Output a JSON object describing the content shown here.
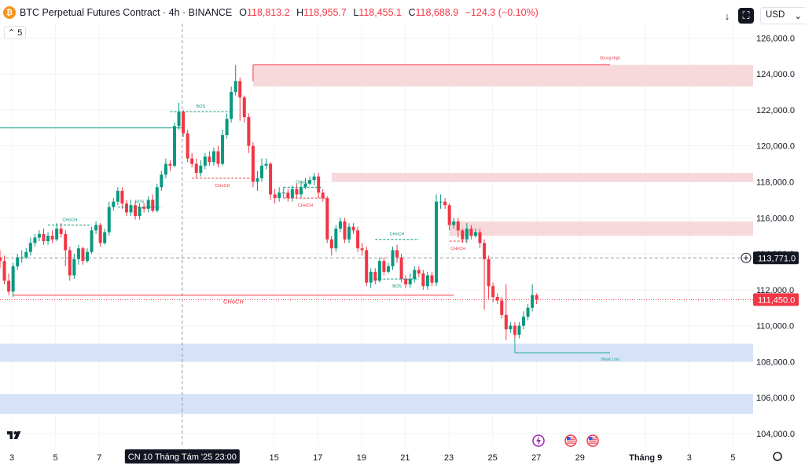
{
  "header": {
    "coin_symbol": "₿",
    "title": "BTC Perpetual Futures Contract · 4h · BINANCE",
    "open_label": "O",
    "open": "118,813.2",
    "high_label": "H",
    "high": "118,955.7",
    "low_label": "L",
    "low": "118,455.1",
    "close_label": "C",
    "close": "118,688.9",
    "change": "−124.3 (−0.10%)",
    "indicator_count": "5",
    "currency": "USD"
  },
  "chart_data": {
    "type": "candlestick",
    "ylim": [
      103300,
      126800
    ],
    "y_ticks": [
      104000,
      106000,
      108000,
      110000,
      112000,
      114000,
      116000,
      118000,
      120000,
      122000,
      124000,
      126000
    ],
    "y_tick_labels": [
      "104,000.0",
      "106,000.0",
      "108,000.0",
      "110,000.0",
      "112,000.0",
      "114,000.0",
      "116,000.0",
      "118,000.0",
      "120,000.0",
      "122,000.0",
      "124,000.0",
      "126,000.0"
    ],
    "x_ticks": [
      {
        "label": "3",
        "day": 3
      },
      {
        "label": "5",
        "day": 5
      },
      {
        "label": "7",
        "day": 7
      },
      {
        "label": "15",
        "day": 15
      },
      {
        "label": "17",
        "day": 17
      },
      {
        "label": "19",
        "day": 19
      },
      {
        "label": "21",
        "day": 21
      },
      {
        "label": "23",
        "day": 23
      },
      {
        "label": "25",
        "day": 25
      },
      {
        "label": "27",
        "day": 27
      },
      {
        "label": "29",
        "day": 29
      },
      {
        "label": "Tháng 9",
        "day": 32
      },
      {
        "label": "3",
        "day": 34
      },
      {
        "label": "5",
        "day": 36
      }
    ],
    "crosshair_label": "CN 10 Tháng Tám '25   23:00",
    "crosshair_day": 10.8,
    "current_price": 111450,
    "current_price_label": "111,450.0",
    "cursor_price": 113771,
    "cursor_price_label": "113,771.0",
    "candles": [
      [
        113800,
        113600,
        114200,
        113200
      ],
      [
        113600,
        112500,
        113900,
        112300
      ],
      [
        112500,
        111900,
        112900,
        111700
      ],
      [
        111900,
        113300,
        113500,
        111600
      ],
      [
        113300,
        113800,
        114000,
        113100
      ],
      [
        113800,
        113800,
        114200,
        113500
      ],
      [
        113800,
        114100,
        114300,
        113700
      ],
      [
        114100,
        114600,
        114900,
        113900
      ],
      [
        114600,
        114900,
        115100,
        114400
      ],
      [
        114900,
        115100,
        115300,
        114700
      ],
      [
        115100,
        114700,
        115400,
        114500
      ],
      [
        114700,
        115000,
        115200,
        114500
      ],
      [
        115000,
        114800,
        115300,
        114600
      ],
      [
        114800,
        115400,
        115700,
        114700
      ],
      [
        115400,
        115100,
        115700,
        114900
      ],
      [
        115100,
        114200,
        115300,
        113300
      ],
      [
        114200,
        112800,
        114400,
        112500
      ],
      [
        112800,
        113700,
        114000,
        112600
      ],
      [
        113700,
        114300,
        114500,
        113400
      ],
      [
        114300,
        113600,
        114400,
        113400
      ],
      [
        113600,
        114100,
        114300,
        113500
      ],
      [
        114100,
        115300,
        115500,
        114000
      ],
      [
        115300,
        115600,
        115800,
        115100
      ],
      [
        115600,
        114600,
        115700,
        114400
      ],
      [
        114600,
        115200,
        115400,
        114500
      ],
      [
        115200,
        116600,
        116900,
        115000
      ],
      [
        116600,
        116900,
        117100,
        116400
      ],
      [
        116900,
        117500,
        117700,
        116700
      ],
      [
        117500,
        116800,
        117700,
        116500
      ],
      [
        116800,
        116300,
        117000,
        116100
      ],
      [
        116300,
        116700,
        117000,
        116100
      ],
      [
        116700,
        116100,
        116900,
        115900
      ],
      [
        116100,
        116600,
        116800,
        115900
      ],
      [
        116600,
        116500,
        116800,
        116300
      ],
      [
        116500,
        117000,
        117200,
        116300
      ],
      [
        117000,
        116400,
        117300,
        116300
      ],
      [
        116400,
        117700,
        117900,
        116300
      ],
      [
        117700,
        118400,
        118600,
        117500
      ],
      [
        118400,
        119000,
        119300,
        118200
      ],
      [
        119000,
        118900,
        119200,
        118600
      ],
      [
        118900,
        121100,
        121300,
        118800
      ],
      [
        121100,
        121900,
        122400,
        120900
      ],
      [
        121900,
        120700,
        122000,
        120500
      ],
      [
        120700,
        119300,
        120900,
        119100
      ],
      [
        119300,
        119000,
        119600,
        118800
      ],
      [
        119000,
        118500,
        119300,
        118200
      ],
      [
        118500,
        118900,
        119200,
        118300
      ],
      [
        118900,
        119400,
        119600,
        118700
      ],
      [
        119400,
        119100,
        119700,
        118900
      ],
      [
        119100,
        119700,
        119900,
        118900
      ],
      [
        119700,
        119000,
        120000,
        118800
      ],
      [
        119000,
        120600,
        120900,
        118900
      ],
      [
        120600,
        121500,
        121800,
        120400
      ],
      [
        121500,
        123000,
        123300,
        121300
      ],
      [
        123000,
        123600,
        124500,
        122800
      ],
      [
        123600,
        122700,
        123800,
        121400
      ],
      [
        122700,
        121600,
        122800,
        121300
      ],
      [
        121600,
        120000,
        121800,
        119600
      ],
      [
        120000,
        118000,
        120200,
        117700
      ],
      [
        118000,
        118200,
        118600,
        117500
      ],
      [
        118200,
        118900,
        119300,
        118000
      ],
      [
        118900,
        119000,
        119300,
        118700
      ],
      [
        119000,
        117300,
        119100,
        117000
      ],
      [
        117300,
        117100,
        117600,
        116800
      ],
      [
        117100,
        117400,
        117700,
        116900
      ],
      [
        117400,
        117400,
        117700,
        117100
      ],
      [
        117400,
        117100,
        117600,
        116900
      ],
      [
        117100,
        117600,
        117800,
        116900
      ],
      [
        117600,
        117300,
        117900,
        117100
      ],
      [
        117300,
        117700,
        118000,
        117100
      ],
      [
        117700,
        117900,
        118200,
        117600
      ],
      [
        117900,
        118100,
        118300,
        117800
      ],
      [
        118100,
        118300,
        118500,
        117800
      ],
      [
        118300,
        117400,
        118500,
        117100
      ],
      [
        117400,
        117100,
        117600,
        116900
      ],
      [
        117100,
        114800,
        117200,
        114600
      ],
      [
        114800,
        114300,
        115000,
        113900
      ],
      [
        114300,
        115400,
        115600,
        114100
      ],
      [
        115400,
        115800,
        116000,
        115200
      ],
      [
        115800,
        114800,
        116000,
        114600
      ],
      [
        114800,
        115500,
        115700,
        114600
      ],
      [
        115500,
        115300,
        115700,
        115100
      ],
      [
        115300,
        114300,
        115500,
        114100
      ],
      [
        114300,
        114200,
        114600,
        113900
      ],
      [
        114200,
        112400,
        114400,
        112200
      ],
      [
        112400,
        113000,
        113200,
        112100
      ],
      [
        113000,
        112500,
        113200,
        112300
      ],
      [
        112500,
        113600,
        113800,
        112400
      ],
      [
        113600,
        113000,
        113800,
        112800
      ],
      [
        113000,
        113300,
        113500,
        112900
      ],
      [
        113300,
        114200,
        114400,
        113100
      ],
      [
        114200,
        113800,
        114500,
        113500
      ],
      [
        113800,
        112600,
        114000,
        112400
      ],
      [
        112600,
        112300,
        112800,
        112100
      ],
      [
        112300,
        112600,
        112900,
        112100
      ],
      [
        112600,
        113100,
        113300,
        112400
      ],
      [
        113100,
        112900,
        113300,
        112700
      ],
      [
        112900,
        112200,
        113100,
        112000
      ],
      [
        112200,
        112800,
        113000,
        112000
      ],
      [
        112800,
        112400,
        113000,
        112200
      ],
      [
        112400,
        116900,
        117300,
        112200
      ],
      [
        116900,
        116900,
        117300,
        116500
      ],
      [
        116900,
        116700,
        117100,
        116500
      ],
      [
        116700,
        115600,
        116800,
        115300
      ],
      [
        115600,
        115800,
        116000,
        115400
      ],
      [
        115800,
        115300,
        116000,
        114900
      ],
      [
        115300,
        114800,
        115400,
        114600
      ],
      [
        114800,
        115400,
        115700,
        114600
      ],
      [
        115400,
        115000,
        115600,
        114800
      ],
      [
        115000,
        115200,
        115400,
        114900
      ],
      [
        115200,
        114600,
        115400,
        114300
      ],
      [
        114600,
        113700,
        114800,
        110900
      ],
      [
        113700,
        112200,
        113900,
        111500
      ],
      [
        112200,
        111600,
        112400,
        111300
      ],
      [
        111600,
        111400,
        111800,
        111200
      ],
      [
        111400,
        110600,
        111600,
        110400
      ],
      [
        110600,
        109800,
        112300,
        109200
      ],
      [
        109800,
        110000,
        110200,
        109600
      ],
      [
        110000,
        109500,
        110200,
        109300
      ],
      [
        109500,
        110000,
        110200,
        109300
      ],
      [
        110000,
        110500,
        110800,
        109800
      ],
      [
        110500,
        111000,
        111200,
        110300
      ],
      [
        111000,
        111700,
        112300,
        110800
      ],
      [
        111700,
        111450,
        111800,
        111200
      ]
    ],
    "annotations": [
      {
        "text": "BOS",
        "kind": "bos",
        "level": 121900,
        "from": 39,
        "to": 53
      },
      {
        "text": "BOS",
        "kind": "bos",
        "level": 116600,
        "from": 27,
        "to": 37
      },
      {
        "text": "BOS",
        "kind": "bos",
        "level": 112600,
        "from": 86,
        "to": 96
      },
      {
        "text": "CHoCH",
        "kind": "choch",
        "level": 115600,
        "from": 11,
        "to": 21
      },
      {
        "text": "CHoCH",
        "kind": "choch",
        "level": 118200,
        "from": 44,
        "to": 58
      },
      {
        "text": "CHoCH",
        "kind": "choch",
        "level": 117100,
        "from": 65,
        "to": 75
      },
      {
        "text": "CHoCH",
        "kind": "choch",
        "level": 117700,
        "from": 65,
        "to": 74
      },
      {
        "text": "CHoCH",
        "kind": "choch",
        "level": 114800,
        "from": 86,
        "to": 96
      },
      {
        "text": "CHoCH",
        "kind": "choch",
        "level": 114700,
        "from": 103,
        "to": 107
      },
      {
        "text": "CHoCH",
        "kind": "choch",
        "level": 111700,
        "from": 3,
        "to": 104
      }
    ],
    "strong_high_label": "Strong High",
    "strong_high": 124500,
    "weak_low_label": "Weak Low",
    "weak_low": 108500,
    "supply_zones": [
      [
        123300,
        124500
      ],
      [
        115000,
        115800
      ],
      [
        118000,
        118500
      ]
    ],
    "demand_zones": [
      [
        108000,
        109000
      ],
      [
        105100,
        106200
      ]
    ],
    "teal_level": 121000,
    "event_icons": [
      "bolt-icon",
      "us-flag-icon",
      "us-flag-icon"
    ]
  },
  "colors": {
    "up": "#089981",
    "down": "#f23645",
    "accent_red": "#f23645",
    "supply": "#f7d9dc",
    "demand": "#d6e2f7",
    "grid": "#f2f3f5",
    "text": "#131722"
  }
}
